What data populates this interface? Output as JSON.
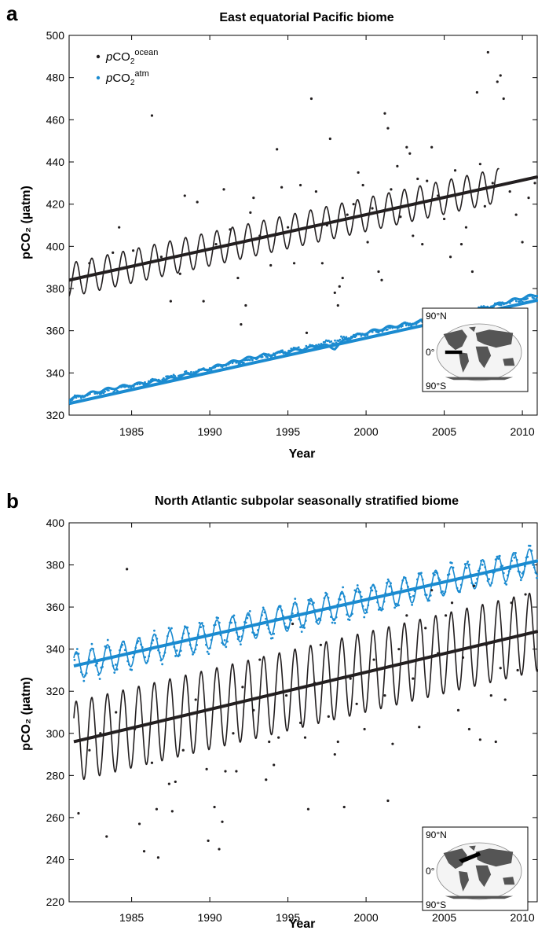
{
  "chart_data": [
    {
      "panel_label": "a",
      "type": "line",
      "title": "East equatorial Pacific biome",
      "xlabel": "Year",
      "ylabel": "pCO₂ (µatm)",
      "xlim": [
        1981,
        2011
      ],
      "ylim": [
        320,
        500
      ],
      "xticks": [
        "1985",
        "1990",
        "1995",
        "2000",
        "2005",
        "2010"
      ],
      "yticks": [
        "320",
        "340",
        "360",
        "380",
        "400",
        "420",
        "440",
        "460",
        "480",
        "500"
      ],
      "legend": {
        "placement": "top-left",
        "entries": [
          {
            "prefix": "p",
            "base": "CO",
            "sub": "2",
            "sup": "ocean"
          },
          {
            "prefix": "p",
            "base": "CO",
            "sub": "2",
            "sup": "atm"
          }
        ]
      },
      "series": [
        {
          "key": "ocean",
          "color": "#231f20",
          "trend": {
            "x": [
              1981,
              2011
            ],
            "y": [
              384,
              433
            ]
          },
          "seasonal_amplitude": 8,
          "seasonal_end": 2008.5,
          "observations": "scattered points"
        },
        {
          "key": "atm",
          "color": "#1b8bd0",
          "trend": {
            "x": [
              1981,
              2011
            ],
            "y": [
              325.5,
              374.5
            ]
          },
          "seasonal_amplitude": 0.6,
          "observations": "dense points along trend"
        }
      ],
      "ocean_points": [
        [
          1982.3,
          392
        ],
        [
          1983.8,
          397
        ],
        [
          1984.2,
          409
        ],
        [
          1985.1,
          398
        ],
        [
          1986.3,
          462
        ],
        [
          1986.9,
          395
        ],
        [
          1987.5,
          374
        ],
        [
          1988.1,
          387
        ],
        [
          1988.4,
          424
        ],
        [
          1989.2,
          421
        ],
        [
          1989.6,
          374
        ],
        [
          1990.4,
          401
        ],
        [
          1990.9,
          427
        ],
        [
          1991.3,
          408
        ],
        [
          1991.8,
          385
        ],
        [
          1992.0,
          363
        ],
        [
          1992.3,
          372
        ],
        [
          1992.6,
          416
        ],
        [
          1992.8,
          423
        ],
        [
          1993.2,
          405
        ],
        [
          1993.9,
          391
        ],
        [
          1994.3,
          446
        ],
        [
          1994.6,
          428
        ],
        [
          1995.0,
          409
        ],
        [
          1995.4,
          392
        ],
        [
          1995.8,
          429
        ],
        [
          1996.2,
          359
        ],
        [
          1996.5,
          470
        ],
        [
          1996.8,
          426
        ],
        [
          1997.2,
          392
        ],
        [
          1997.5,
          410
        ],
        [
          1997.7,
          451
        ],
        [
          1998.0,
          378
        ],
        [
          1998.2,
          372
        ],
        [
          1998.3,
          381
        ],
        [
          1998.5,
          385
        ],
        [
          1998.8,
          415
        ],
        [
          1999.2,
          420
        ],
        [
          1999.5,
          435
        ],
        [
          1999.8,
          429
        ],
        [
          2000.1,
          402
        ],
        [
          2000.4,
          418
        ],
        [
          2000.8,
          388
        ],
        [
          2001.0,
          384
        ],
        [
          2001.2,
          463
        ],
        [
          2001.4,
          456
        ],
        [
          2001.6,
          427
        ],
        [
          2002.0,
          438
        ],
        [
          2002.2,
          414
        ],
        [
          2002.6,
          447
        ],
        [
          2002.8,
          444
        ],
        [
          2003.0,
          405
        ],
        [
          2003.3,
          432
        ],
        [
          2003.6,
          401
        ],
        [
          2003.9,
          431
        ],
        [
          2004.2,
          447
        ],
        [
          2004.6,
          424
        ],
        [
          2005.0,
          413
        ],
        [
          2005.4,
          395
        ],
        [
          2005.7,
          436
        ],
        [
          2006.1,
          401
        ],
        [
          2006.4,
          409
        ],
        [
          2006.8,
          388
        ],
        [
          2007.1,
          473
        ],
        [
          2007.3,
          439
        ],
        [
          2007.6,
          419
        ],
        [
          2007.8,
          492
        ],
        [
          2008.1,
          430
        ],
        [
          2008.4,
          478
        ],
        [
          2008.6,
          481
        ],
        [
          2008.8,
          470
        ],
        [
          2009.2,
          426
        ],
        [
          2009.6,
          415
        ],
        [
          2010.0,
          402
        ],
        [
          2010.4,
          423
        ],
        [
          2010.8,
          430
        ]
      ],
      "inset_map": {
        "north_label": "90°N",
        "equator_label": "0°",
        "south_label": "90°S"
      }
    },
    {
      "panel_label": "b",
      "type": "line",
      "title": "North Atlantic subpolar seasonally stratified biome",
      "xlabel": "Year",
      "ylabel": "pCO₂ (µatm)",
      "xlim": [
        1981,
        2011
      ],
      "ylim": [
        220,
        400
      ],
      "xticks": [
        "1985",
        "1990",
        "1995",
        "2000",
        "2005",
        "2010"
      ],
      "yticks": [
        "220",
        "240",
        "260",
        "280",
        "300",
        "320",
        "340",
        "360",
        "380",
        "400"
      ],
      "series": [
        {
          "key": "ocean",
          "color": "#231f20",
          "trend": {
            "x": [
              1981.3,
              2011
            ],
            "y": [
              296,
              348.5
            ]
          },
          "seasonal_amplitude_start": 19,
          "seasonal_amplitude_end": 19,
          "observations": "scattered points"
        },
        {
          "key": "atm",
          "color": "#1b8bd0",
          "trend": {
            "x": [
              1981.3,
              2011
            ],
            "y": [
              332,
              382
            ]
          },
          "seasonal_amplitude": 6.5,
          "observations": "dense points along seasonal cycle"
        }
      ],
      "ocean_points": [
        [
          1981.6,
          262
        ],
        [
          1982.3,
          292
        ],
        [
          1983.0,
          300
        ],
        [
          1983.4,
          251
        ],
        [
          1984.0,
          310
        ],
        [
          1984.7,
          378
        ],
        [
          1985.2,
          302
        ],
        [
          1985.5,
          257
        ],
        [
          1985.8,
          244
        ],
        [
          1986.3,
          286
        ],
        [
          1986.6,
          264
        ],
        [
          1986.7,
          241
        ],
        [
          1987.4,
          276
        ],
        [
          1987.6,
          263
        ],
        [
          1987.8,
          277
        ],
        [
          1988.3,
          292
        ],
        [
          1989.1,
          316
        ],
        [
          1989.8,
          283
        ],
        [
          1989.9,
          249
        ],
        [
          1990.3,
          265
        ],
        [
          1990.6,
          245
        ],
        [
          1990.8,
          258
        ],
        [
          1991.0,
          282
        ],
        [
          1991.5,
          300
        ],
        [
          1991.7,
          282
        ],
        [
          1992.1,
          322
        ],
        [
          1992.8,
          311
        ],
        [
          1993.2,
          335
        ],
        [
          1993.6,
          278
        ],
        [
          1993.8,
          296
        ],
        [
          1994.1,
          285
        ],
        [
          1994.4,
          298
        ],
        [
          1994.9,
          318
        ],
        [
          1995.3,
          352
        ],
        [
          1995.8,
          305
        ],
        [
          1996.1,
          298
        ],
        [
          1996.3,
          264
        ],
        [
          1996.7,
          324
        ],
        [
          1997.1,
          342
        ],
        [
          1997.6,
          308
        ],
        [
          1998.0,
          290
        ],
        [
          1998.2,
          296
        ],
        [
          1998.6,
          265
        ],
        [
          1999.0,
          326
        ],
        [
          1999.4,
          314
        ],
        [
          1999.9,
          302
        ],
        [
          2000.5,
          335
        ],
        [
          2001.2,
          318
        ],
        [
          2001.4,
          268
        ],
        [
          2001.7,
          295
        ],
        [
          2002.1,
          340
        ],
        [
          2002.6,
          356
        ],
        [
          2003.0,
          326
        ],
        [
          2003.4,
          303
        ],
        [
          2003.8,
          350
        ],
        [
          2004.2,
          368
        ],
        [
          2004.6,
          338
        ],
        [
          2005.1,
          356
        ],
        [
          2005.5,
          362
        ],
        [
          2005.9,
          311
        ],
        [
          2006.2,
          336
        ],
        [
          2006.6,
          302
        ],
        [
          2006.9,
          370
        ],
        [
          2007.3,
          297
        ],
        [
          2007.7,
          342
        ],
        [
          2008.0,
          318
        ],
        [
          2008.3,
          296
        ],
        [
          2008.6,
          331
        ],
        [
          2008.9,
          316
        ],
        [
          2009.3,
          362
        ],
        [
          2009.7,
          330
        ],
        [
          2010.2,
          366
        ]
      ],
      "inset_map": {
        "north_label": "90°N",
        "equator_label": "0°",
        "south_label": "90°S"
      }
    }
  ]
}
